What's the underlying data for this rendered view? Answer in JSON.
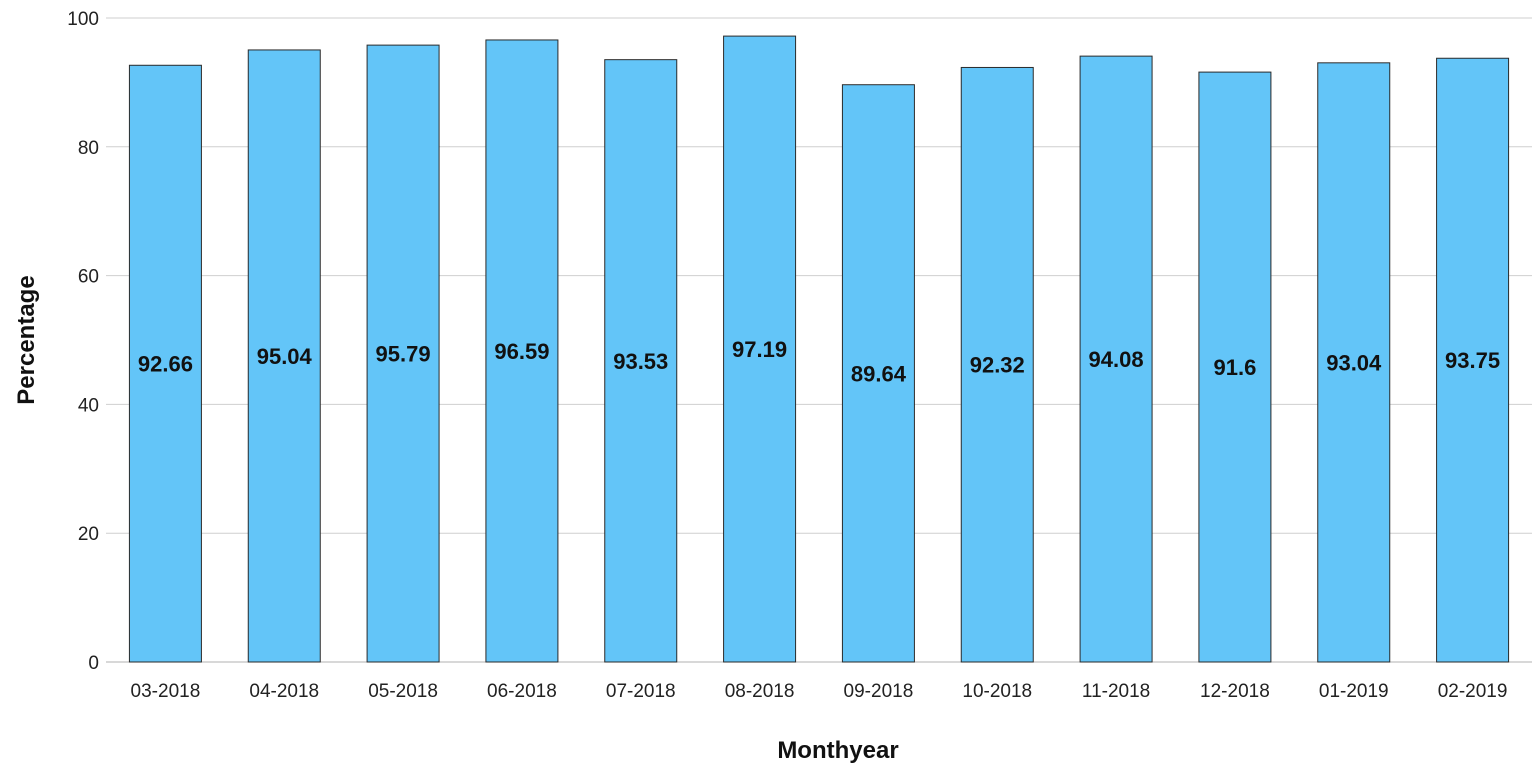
{
  "chart_data": {
    "type": "bar",
    "categories": [
      "03-2018",
      "04-2018",
      "05-2018",
      "06-2018",
      "07-2018",
      "08-2018",
      "09-2018",
      "10-2018",
      "11-2018",
      "12-2018",
      "01-2019",
      "02-2019"
    ],
    "values": [
      92.66,
      95.04,
      95.79,
      96.59,
      93.53,
      97.19,
      89.64,
      92.32,
      94.08,
      91.6,
      93.04,
      93.75
    ],
    "data_labels": [
      "92.66",
      "95.04",
      "95.79",
      "96.59",
      "93.53",
      "97.19",
      "89.64",
      "92.32",
      "94.08",
      "91.6",
      "93.04",
      "93.75"
    ],
    "xlabel": "Monthyear",
    "ylabel": "Percentage",
    "ylim": [
      0,
      100
    ],
    "yticks": [
      0,
      20,
      40,
      60,
      80,
      100
    ],
    "ytick_labels": [
      "0",
      "20",
      "40",
      "60",
      "80",
      "100"
    ],
    "grid": true,
    "legend": "none",
    "bar_color": "#63c5f8",
    "bar_edge_color": "#2a2a2a"
  }
}
